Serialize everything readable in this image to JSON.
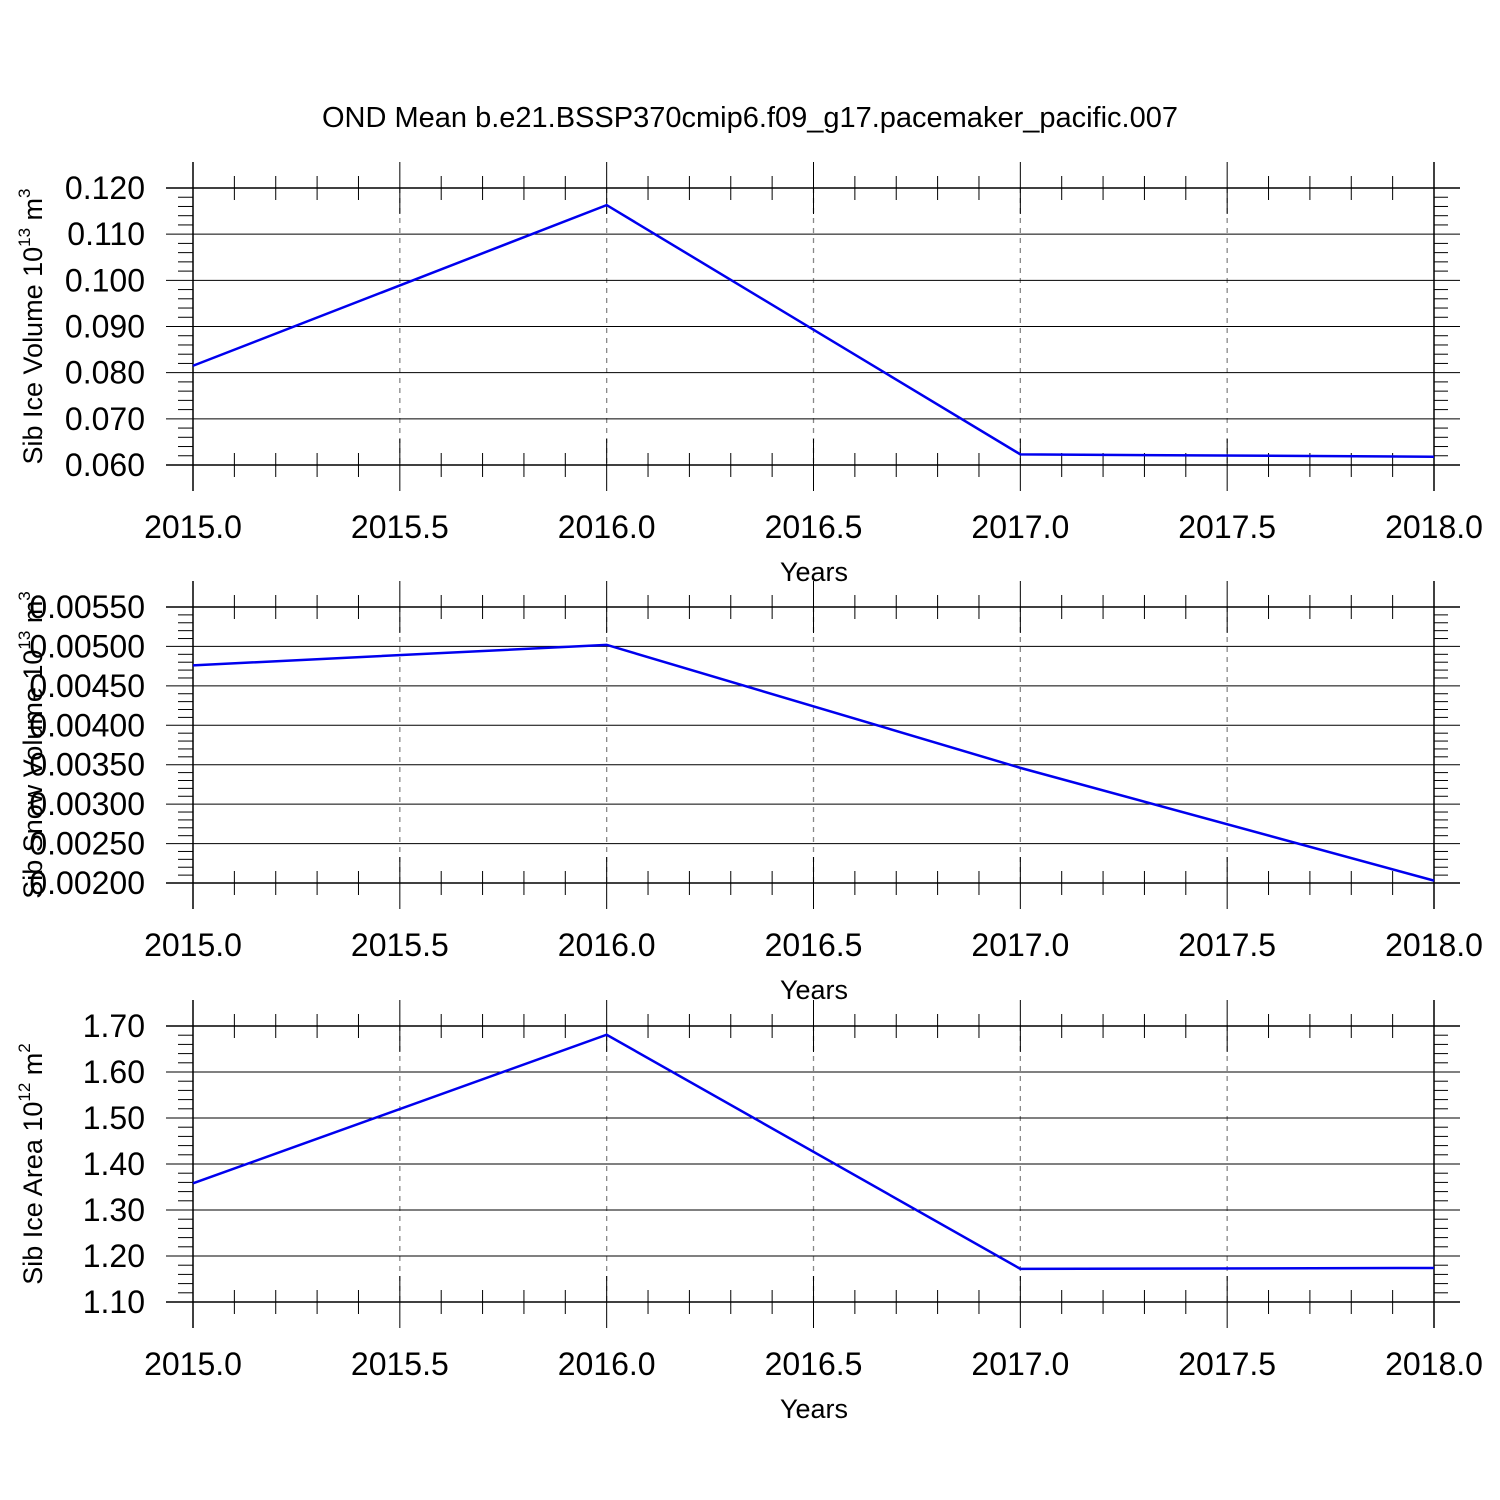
{
  "figure": {
    "title": "OND Mean b.e21.BSSP370cmip6.f09_g17.pacemaker_pacific.007"
  },
  "chart_data": [
    {
      "type": "line",
      "xlabel": "Years",
      "ylabel": {
        "base": "Sib Ice Volume 10",
        "exp": "13",
        "unit": " m",
        "unit_exp": "3"
      },
      "xlim": [
        2015.0,
        2018.0
      ],
      "ylim": [
        0.06,
        0.12
      ],
      "xticks": [
        "2015.0",
        "2015.5",
        "2016.0",
        "2016.5",
        "2017.0",
        "2017.5",
        "2018.0"
      ],
      "yticks": [
        "0.060",
        "0.070",
        "0.080",
        "0.090",
        "0.100",
        "0.110",
        "0.120"
      ],
      "grid": "vertical-dashed",
      "series": [
        {
          "x": [
            2015.0,
            2016.0,
            2017.0,
            2018.0
          ],
          "y": [
            0.0815,
            0.1163,
            0.0623,
            0.0618
          ],
          "color": "#0000ee"
        }
      ]
    },
    {
      "type": "line",
      "xlabel": "Years",
      "ylabel": {
        "base": "Sib Snow Volume 10",
        "exp": "13",
        "unit": " m",
        "unit_exp": "3"
      },
      "xlim": [
        2015.0,
        2018.0
      ],
      "ylim": [
        0.002,
        0.0055
      ],
      "xticks": [
        "2015.0",
        "2015.5",
        "2016.0",
        "2016.5",
        "2017.0",
        "2017.5",
        "2018.0"
      ],
      "yticks": [
        "0.00200",
        "0.00250",
        "0.00300",
        "0.00350",
        "0.00400",
        "0.00450",
        "0.00500",
        "0.00550"
      ],
      "grid": "vertical-dashed",
      "series": [
        {
          "x": [
            2015.0,
            2016.0,
            2017.0,
            2018.0
          ],
          "y": [
            0.00476,
            0.00502,
            0.00346,
            0.00203
          ],
          "color": "#0000ee"
        }
      ]
    },
    {
      "type": "line",
      "xlabel": "Years",
      "ylabel": {
        "base": "Sib Ice Area 10",
        "exp": "12",
        "unit": " m",
        "unit_exp": "2"
      },
      "xlim": [
        2015.0,
        2018.0
      ],
      "ylim": [
        1.1,
        1.7
      ],
      "xticks": [
        "2015.0",
        "2015.5",
        "2016.0",
        "2016.5",
        "2017.0",
        "2017.5",
        "2018.0"
      ],
      "yticks": [
        "1.10",
        "1.20",
        "1.30",
        "1.40",
        "1.50",
        "1.60",
        "1.70"
      ],
      "grid": "vertical-dashed",
      "series": [
        {
          "x": [
            2015.0,
            2016.0,
            2017.0,
            2018.0
          ],
          "y": [
            1.358,
            1.681,
            1.172,
            1.174
          ],
          "color": "#0000ee"
        }
      ]
    }
  ]
}
